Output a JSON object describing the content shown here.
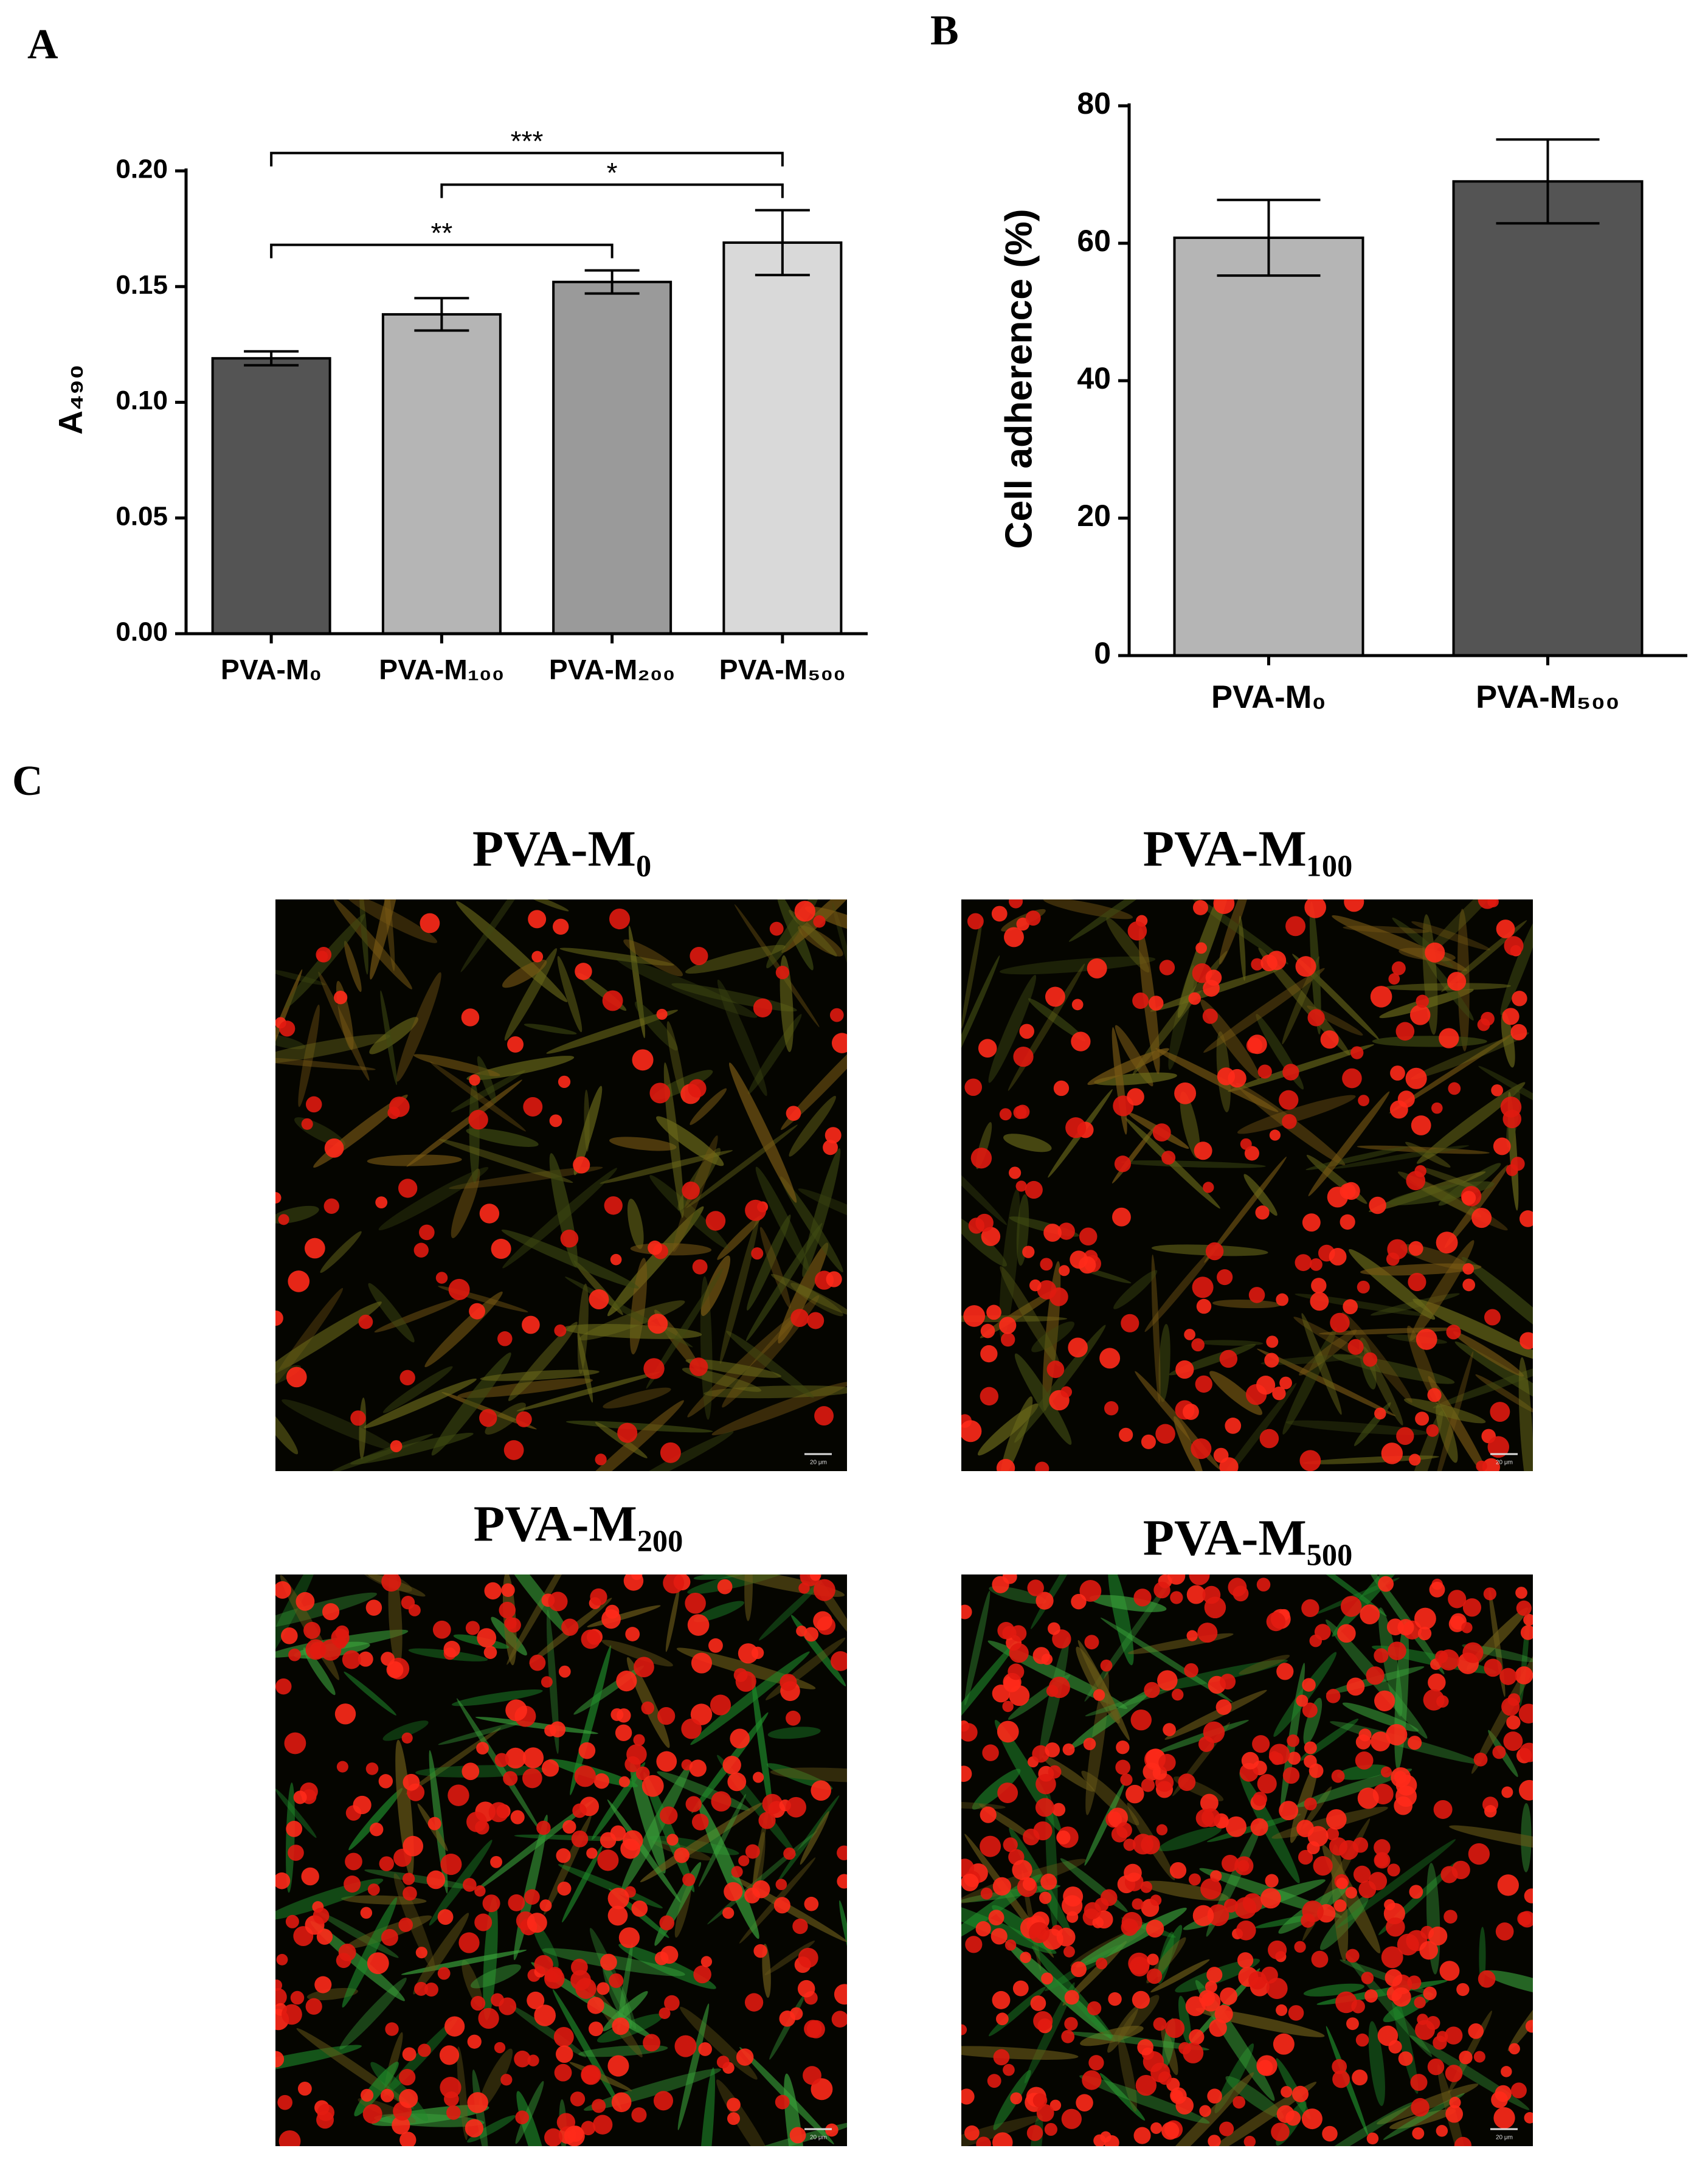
{
  "chart_data": [
    {
      "type": "bar",
      "panel_label": "A",
      "y_label": "A₄₉₀",
      "categories": [
        "PVA-M₀",
        "PVA-M₁₀₀",
        "PVA-M₂₀₀",
        "PVA-M₅₀₀"
      ],
      "values": [
        0.119,
        0.138,
        0.152,
        0.169
      ],
      "errors": [
        0.003,
        0.007,
        0.005,
        0.014
      ],
      "colors": [
        "#545454",
        "#b5b5b5",
        "#9a9a9a",
        "#d9d9d9"
      ],
      "ylim": [
        0,
        0.2
      ],
      "yticks": [
        {
          "value": 0,
          "label": "0.00"
        },
        0.05,
        {
          "value": 0.1,
          "label": "0.10"
        },
        0.15,
        {
          "value": 0.2,
          "label": "0.20"
        }
      ],
      "significance": [
        {
          "between": [
            "PVA-M₀",
            "PVA-M₂₀₀"
          ],
          "label": "**"
        },
        {
          "between": [
            "PVA-M₁₀₀",
            "PVA-M₅₀₀"
          ],
          "label": "*"
        },
        {
          "between": [
            "PVA-M₀",
            "PVA-M₅₀₀"
          ],
          "label": "***"
        }
      ]
    },
    {
      "type": "bar",
      "panel_label": "B",
      "y_label": "Cell adherence (%)",
      "categories": [
        "PVA-M₀",
        "PVA-M₅₀₀"
      ],
      "values": [
        60.8,
        69.0
      ],
      "errors": [
        5.5,
        6.1
      ],
      "colors": [
        "#b5b5b5",
        "#545454"
      ],
      "ylim": [
        0,
        80
      ],
      "yticks": [
        0,
        20,
        40,
        60,
        80
      ]
    }
  ],
  "panel_c": {
    "label": "C",
    "images": [
      {
        "title": "PVA-M₀",
        "scale_bar": "20 μm"
      },
      {
        "title": "PVA-M₁₀₀",
        "scale_bar": "20 μm"
      },
      {
        "title": "PVA-M₂₀₀",
        "scale_bar": "20 μm"
      },
      {
        "title": "PVA-M₅₀₀",
        "scale_bar": "20 μm"
      }
    ]
  }
}
